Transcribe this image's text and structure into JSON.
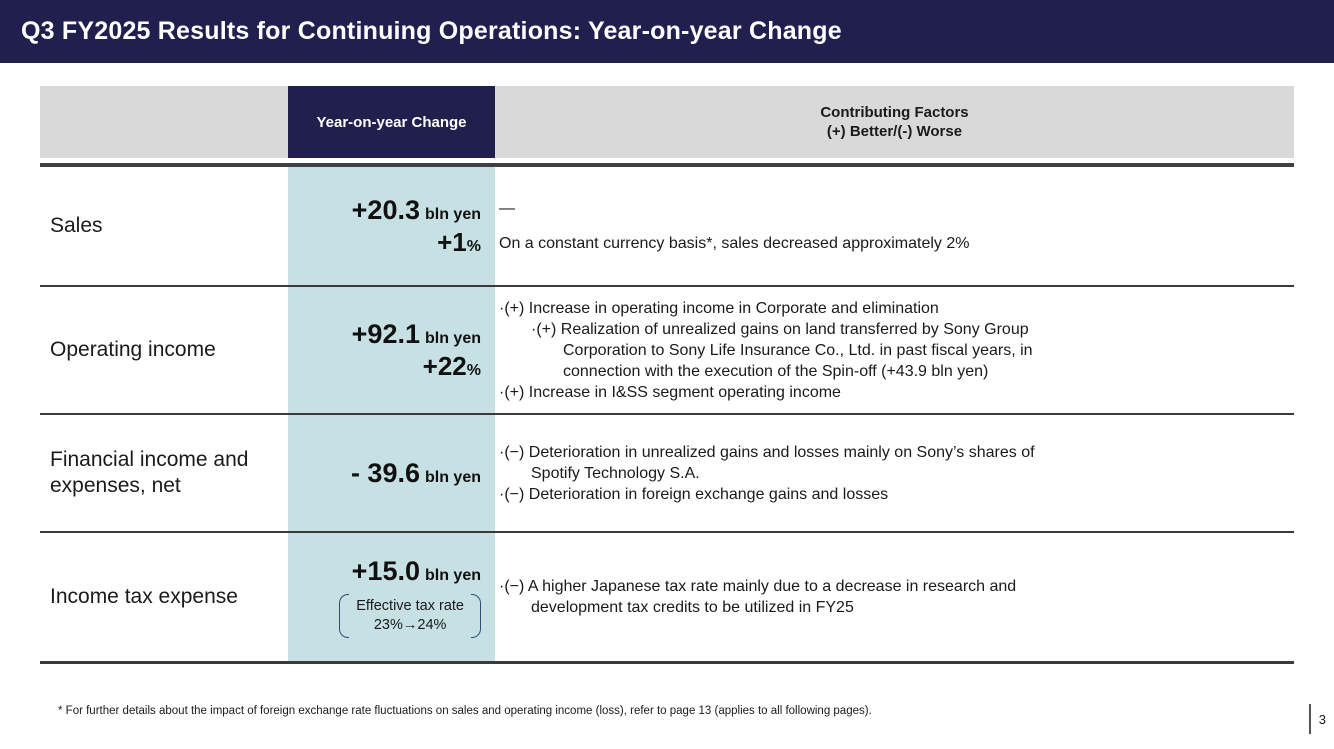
{
  "title": "Q3 FY2025 Results for Continuing Operations: Year-on-year Change",
  "colors": {
    "navy": "#211f4e",
    "teal_column": "#c6e0e4",
    "header_gray": "#d9d9d9",
    "separator": "#3a3a3a",
    "bracket_blue": "#2e4d7b"
  },
  "table": {
    "header": {
      "blank": "",
      "change": "Year-on-year Change",
      "factors_line1": "Contributing Factors",
      "factors_line2": "(+) Better/(-) Worse"
    },
    "rows": [
      {
        "label": "Sales",
        "change": {
          "amount": "+20.3",
          "unit": "bln yen",
          "pct": {
            "value": "+1",
            "unit": "%"
          }
        },
        "factors": [
          {
            "text": "—",
            "indent": 0
          },
          {
            "text": "On a constant currency basis*, sales decreased approximately 2%",
            "indent": 0,
            "gap_before": true
          }
        ]
      },
      {
        "label": "Operating income",
        "change": {
          "amount": "+92.1",
          "unit": "bln yen",
          "pct": {
            "value": "+22",
            "unit": "%"
          }
        },
        "factors": [
          {
            "text": "·(+) Increase in operating income in Corporate and elimination",
            "indent": 0
          },
          {
            "text": "·(+) Realization of unrealized gains on land transferred by Sony Group",
            "indent": 1
          },
          {
            "text": "Corporation to Sony Life Insurance Co., Ltd. in past fiscal years, in",
            "indent": 2
          },
          {
            "text": "connection with the execution of the Spin-off (+43.9 bln yen)",
            "indent": 2
          },
          {
            "text": "·(+) Increase in I&SS segment operating income",
            "indent": 0
          }
        ]
      },
      {
        "label": "Financial income and expenses, net",
        "change": {
          "amount": "- 39.6",
          "unit": "bln yen"
        },
        "factors": [
          {
            "text": "·(−) Deterioration in unrealized gains and losses mainly on Sony’s shares of",
            "indent": 0
          },
          {
            "text": "Spotify Technology S.A.",
            "indent": 1
          },
          {
            "text": "·(−) Deterioration in foreign exchange gains and losses",
            "indent": 0
          }
        ]
      },
      {
        "label": "Income tax expense",
        "change": {
          "amount": "+15.0",
          "unit": "bln yen",
          "note": [
            "Effective tax rate",
            "23%→24%"
          ]
        },
        "factors": [
          {
            "text": "·(−) A higher Japanese tax rate mainly due to a decrease in research and",
            "indent": 0
          },
          {
            "text": "development tax credits to be utilized in FY25",
            "indent": 1
          }
        ]
      }
    ]
  },
  "footnote": "* For further details about the impact of foreign exchange rate fluctuations on sales and operating income (loss), refer to page 13 (applies to all following pages).",
  "page_number": "3"
}
